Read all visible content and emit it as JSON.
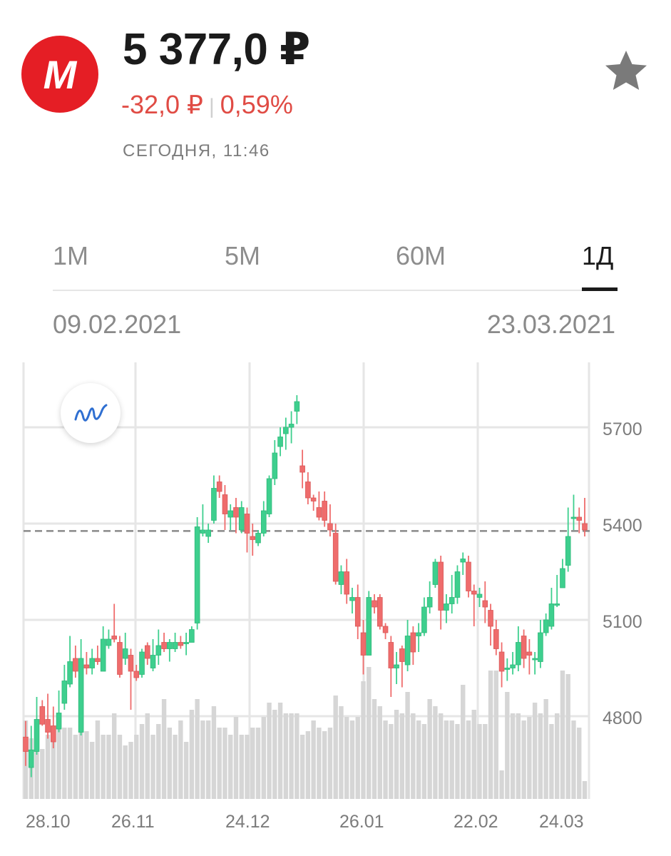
{
  "header": {
    "logo_letter": "M",
    "price": "5 377,0 ₽",
    "change_abs": "-32,0 ₽",
    "change_sep": "|",
    "change_pct": "0,59%",
    "updated": "СЕГОДНЯ, 11:46"
  },
  "tabs": [
    {
      "label": "1M"
    },
    {
      "label": "5M"
    },
    {
      "label": "60M"
    },
    {
      "label": "1Д"
    }
  ],
  "range": {
    "from": "09.02.2021",
    "to": "23.03.2021"
  },
  "colors": {
    "up": "#3ecf8e",
    "down": "#ef6c6c",
    "accent": "#e51e25",
    "negative": "#e04b44",
    "volume": "#d6d6d6"
  },
  "icons": {
    "favorite": "star-icon",
    "indicators": "wave-icon"
  },
  "chart_data": {
    "type": "candlestick",
    "y_ticks": [
      "5700",
      "5400",
      "5100",
      "4800"
    ],
    "x_ticks": [
      "28.10",
      "26.11",
      "24.12",
      "26.01",
      "22.02",
      "24.03"
    ],
    "current_price_line": 5377,
    "candles": [
      [
        4735,
        4690,
        4785,
        4645
      ],
      [
        4640,
        4695,
        4770,
        4610
      ],
      [
        4690,
        4790,
        4860,
        4680
      ],
      [
        4830,
        4775,
        4850,
        4770
      ],
      [
        4790,
        4750,
        4870,
        4730
      ],
      [
        4770,
        4720,
        4830,
        4700
      ],
      [
        4760,
        4810,
        4880,
        4750
      ],
      [
        4840,
        4910,
        4960,
        4820
      ],
      [
        4900,
        4970,
        5050,
        4890
      ],
      [
        4980,
        4940,
        5020,
        4920
      ],
      [
        4750,
        4980,
        5040,
        4740
      ],
      [
        4960,
        4950,
        5000,
        4930
      ],
      [
        4950,
        4980,
        5010,
        4930
      ],
      [
        4980,
        4970,
        5020,
        4960
      ],
      [
        4940,
        5040,
        5080,
        4940
      ],
      [
        5020,
        5040,
        5070,
        5010
      ],
      [
        5050,
        5040,
        5150,
        5030
      ],
      [
        5030,
        4930,
        5050,
        4920
      ],
      [
        4980,
        5010,
        5060,
        4960
      ],
      [
        4990,
        4940,
        5010,
        4820
      ],
      [
        4940,
        4920,
        4960,
        4910
      ],
      [
        4930,
        5000,
        5010,
        4920
      ],
      [
        5020,
        4980,
        5030,
        4960
      ],
      [
        4950,
        4990,
        5040,
        4940
      ],
      [
        4990,
        5020,
        5070,
        4960
      ],
      [
        5030,
        5010,
        5060,
        5000
      ],
      [
        5010,
        5030,
        5040,
        4970
      ],
      [
        5010,
        5030,
        5060,
        5000
      ],
      [
        5030,
        5020,
        5050,
        5010
      ],
      [
        5030,
        5030,
        5060,
        4990
      ],
      [
        5030,
        5070,
        5080,
        5030
      ],
      [
        5090,
        5390,
        5420,
        5070
      ],
      [
        5370,
        5380,
        5460,
        5360
      ],
      [
        5360,
        5380,
        5400,
        5340
      ],
      [
        5410,
        5510,
        5550,
        5400
      ],
      [
        5530,
        5500,
        5550,
        5480
      ],
      [
        5490,
        5430,
        5520,
        5380
      ],
      [
        5420,
        5440,
        5460,
        5380
      ],
      [
        5450,
        5420,
        5480,
        5370
      ],
      [
        5380,
        5450,
        5470,
        5370
      ],
      [
        5430,
        5370,
        5450,
        5310
      ],
      [
        5360,
        5350,
        5400,
        5300
      ],
      [
        5340,
        5370,
        5380,
        5330
      ],
      [
        5370,
        5440,
        5470,
        5360
      ],
      [
        5430,
        5540,
        5550,
        5420
      ],
      [
        5540,
        5620,
        5660,
        5520
      ],
      [
        5640,
        5670,
        5700,
        5610
      ],
      [
        5680,
        5700,
        5730,
        5630
      ],
      [
        5700,
        5710,
        5750,
        5650
      ],
      [
        5750,
        5780,
        5800,
        5710
      ],
      [
        5580,
        5560,
        5630,
        5510
      ],
      [
        5530,
        5480,
        5560,
        5460
      ],
      [
        5480,
        5470,
        5490,
        5440
      ],
      [
        5450,
        5420,
        5500,
        5410
      ],
      [
        5470,
        5410,
        5500,
        5390
      ],
      [
        5400,
        5380,
        5460,
        5360
      ],
      [
        5370,
        5220,
        5400,
        5210
      ],
      [
        5210,
        5250,
        5270,
        5180
      ],
      [
        5250,
        5180,
        5290,
        5150
      ],
      [
        5160,
        5170,
        5200,
        5120
      ],
      [
        5170,
        5080,
        5210,
        5040
      ],
      [
        5060,
        4990,
        5100,
        4930
      ],
      [
        4990,
        5170,
        5190,
        4990
      ],
      [
        5160,
        5140,
        5180,
        5120
      ],
      [
        5170,
        5080,
        5180,
        5070
      ],
      [
        5080,
        5060,
        5090,
        5040
      ],
      [
        5030,
        4950,
        5050,
        4860
      ],
      [
        4950,
        4960,
        5000,
        4900
      ],
      [
        5010,
        4970,
        5020,
        4890
      ],
      [
        4960,
        5050,
        5100,
        4940
      ],
      [
        5060,
        5000,
        5080,
        4960
      ],
      [
        5050,
        5060,
        5090,
        5000
      ],
      [
        5060,
        5140,
        5170,
        5050
      ],
      [
        5140,
        5170,
        5220,
        5120
      ],
      [
        5210,
        5280,
        5290,
        5200
      ],
      [
        5280,
        5130,
        5300,
        5070
      ],
      [
        5130,
        5150,
        5180,
        5090
      ],
      [
        5150,
        5170,
        5240,
        5120
      ],
      [
        5170,
        5250,
        5270,
        5150
      ],
      [
        5280,
        5290,
        5310,
        5240
      ],
      [
        5280,
        5190,
        5300,
        5170
      ],
      [
        5190,
        5180,
        5210,
        5080
      ],
      [
        5170,
        5180,
        5200,
        5140
      ],
      [
        5160,
        5140,
        5220,
        5090
      ],
      [
        5130,
        5080,
        5150,
        5020
      ],
      [
        5070,
        5010,
        5100,
        4990
      ],
      [
        5000,
        4940,
        5030,
        4890
      ],
      [
        4950,
        4950,
        4980,
        4910
      ],
      [
        4950,
        4960,
        5000,
        4930
      ],
      [
        4960,
        5030,
        5080,
        4940
      ],
      [
        5050,
        4980,
        5070,
        4950
      ],
      [
        5000,
        4990,
        5040,
        4930
      ],
      [
        4980,
        4980,
        5000,
        4930
      ],
      [
        4970,
        5060,
        5100,
        4950
      ],
      [
        5060,
        5100,
        5120,
        5050
      ],
      [
        5080,
        5150,
        5200,
        5070
      ],
      [
        5150,
        5150,
        5240,
        5140
      ],
      [
        5200,
        5260,
        5290,
        5200
      ],
      [
        5270,
        5360,
        5450,
        5250
      ],
      [
        5420,
        5420,
        5490,
        5380
      ],
      [
        5420,
        5410,
        5450,
        5370
      ],
      [
        5400,
        5380,
        5480,
        5360
      ]
    ],
    "volume": [
      22,
      17,
      15,
      14,
      18,
      19,
      22,
      20,
      20,
      18,
      25,
      19,
      16,
      22,
      18,
      18,
      24,
      18,
      15,
      16,
      18,
      21,
      24,
      18,
      21,
      28,
      20,
      18,
      22,
      16,
      25,
      28,
      22,
      22,
      26,
      20,
      20,
      18,
      23,
      18,
      18,
      20,
      20,
      23,
      27,
      25,
      27,
      24,
      24,
      24,
      18,
      19,
      22,
      20,
      19,
      20,
      29,
      26,
      23,
      22,
      23,
      33,
      37,
      28,
      26,
      22,
      21,
      25,
      24,
      30,
      24,
      22,
      21,
      28,
      26,
      24,
      22,
      22,
      21,
      32,
      22,
      25,
      21,
      21,
      36,
      36,
      8,
      30,
      24,
      24,
      22,
      23,
      27,
      24,
      28,
      21,
      24,
      36,
      35,
      22,
      20,
      5
    ]
  }
}
